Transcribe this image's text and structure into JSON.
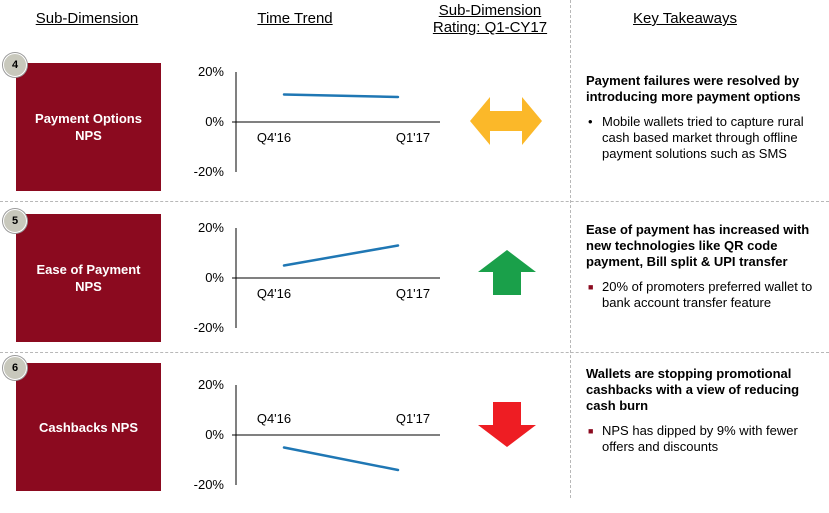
{
  "headers": {
    "sub_dimension": "Sub-Dimension",
    "time_trend": "Time Trend",
    "rating_line1": "Sub-Dimension",
    "rating_line2": "Rating: Q1-CY17",
    "key_takeaways": "Key Takeaways"
  },
  "rows": [
    {
      "number": "4",
      "name": "Payment Options NPS",
      "rating": "neutral",
      "rating_icon": "left-right-arrow-icon",
      "rating_color": "#fbb829",
      "takeaway_title": "Payment failures were resolved by introducing more payment options",
      "bullet_style": "dot",
      "bullet": "Mobile wallets tried to capture rural cash based market through offline payment solutions such as SMS"
    },
    {
      "number": "5",
      "name": "Ease of Payment NPS",
      "rating": "up",
      "rating_icon": "up-arrow-icon",
      "rating_color": "#1aa04a",
      "takeaway_title": "Ease of payment has increased with new technologies like QR code payment, Bill split & UPI transfer",
      "bullet_style": "square",
      "bullet": "20% of promoters preferred wallet to bank account transfer feature"
    },
    {
      "number": "6",
      "name": "Cashbacks NPS",
      "rating": "down",
      "rating_icon": "down-arrow-icon",
      "rating_color": "#ee1d23",
      "takeaway_title": "Wallets are stopping promotional cashbacks with a view of reducing cash burn",
      "bullet_style": "square",
      "bullet": "NPS has dipped by 9% with fewer offers and discounts"
    }
  ],
  "chart_data": [
    {
      "type": "line",
      "categories": [
        "Q4'16",
        "Q1'17"
      ],
      "series": [
        {
          "values": [
            11,
            10
          ]
        }
      ],
      "ylim": [
        -20,
        20
      ],
      "yticks": [
        "20%",
        "0%",
        "-20%"
      ],
      "line_color": "#1f77b4",
      "grid": false
    },
    {
      "type": "line",
      "categories": [
        "Q4'16",
        "Q1'17"
      ],
      "series": [
        {
          "values": [
            5,
            13
          ]
        }
      ],
      "ylim": [
        -20,
        20
      ],
      "yticks": [
        "20%",
        "0%",
        "-20%"
      ],
      "line_color": "#1f77b4",
      "grid": false
    },
    {
      "type": "line",
      "categories": [
        "Q4'16",
        "Q1'17"
      ],
      "series": [
        {
          "values": [
            -5,
            -14
          ]
        }
      ],
      "ylim": [
        -20,
        20
      ],
      "yticks": [
        "20%",
        "0%",
        "-20%"
      ],
      "line_color": "#1f77b4",
      "grid": false
    }
  ]
}
